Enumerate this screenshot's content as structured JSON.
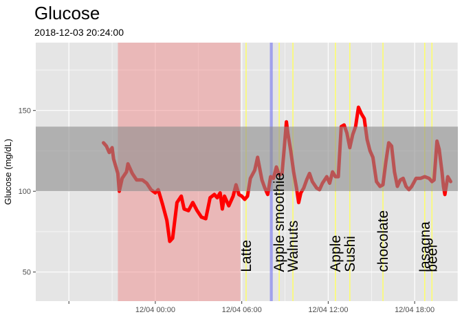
{
  "chart_data": {
    "type": "line",
    "title": "Glucose",
    "subtitle": "2018-12-03 20:24:00",
    "xlabel": "",
    "ylabel": "Glucose (mg/dL)",
    "x_unit": "hours since 2018-12-04 00:00",
    "xlim": [
      -8.3,
      21.0
    ],
    "ylim": [
      32,
      192
    ],
    "x_ticks": [
      {
        "value": -6,
        "label": ""
      },
      {
        "value": 0,
        "label": "12/04 00:00"
      },
      {
        "value": 6,
        "label": "12/04 06:00"
      },
      {
        "value": 12,
        "label": "12/04 12:00"
      },
      {
        "value": 18,
        "label": "12/04 18:00"
      }
    ],
    "y_ticks": [
      {
        "value": 50,
        "label": "50"
      },
      {
        "value": 100,
        "label": "100"
      },
      {
        "value": 150,
        "label": "150"
      }
    ],
    "grid": true,
    "colors": {
      "panel": "#e5e5e5",
      "grid": "#ffffff",
      "line": "#ff0000",
      "target_band": "#8c8c8c",
      "sleep_band": "#f08080",
      "activity_band": "#8888ee",
      "food_line": "#ffff66"
    },
    "target_range": [
      100,
      140
    ],
    "shaded_periods": [
      {
        "name": "sleep",
        "x_start": -2.6,
        "x_end": 5.9
      },
      {
        "name": "activity",
        "x_start": 7.95,
        "x_end": 8.15
      }
    ],
    "food_events": [
      {
        "x": 6.3,
        "label": "Latte"
      },
      {
        "x": 8.6,
        "label": "Apple smoothie"
      },
      {
        "x": 9.55,
        "label": "Walnuts"
      },
      {
        "x": 12.5,
        "label": "Apple"
      },
      {
        "x": 13.5,
        "label": "Sushi"
      },
      {
        "x": 15.8,
        "label": "chocolate"
      },
      {
        "x": 18.7,
        "label": "lasagna"
      },
      {
        "x": 19.2,
        "label": "beer"
      }
    ],
    "series": [
      {
        "points": [
          [
            -3.6,
            130
          ],
          [
            -3.4,
            128
          ],
          [
            -3.2,
            124
          ],
          [
            -3.0,
            127
          ],
          [
            -2.9,
            120
          ],
          [
            -2.6,
            111
          ],
          [
            -2.5,
            100
          ],
          [
            -2.3,
            108
          ],
          [
            -2.0,
            112
          ],
          [
            -1.9,
            117
          ],
          [
            -1.6,
            111
          ],
          [
            -1.3,
            107
          ],
          [
            -0.9,
            107
          ],
          [
            -0.6,
            105
          ],
          [
            -0.3,
            101
          ],
          [
            0.0,
            99
          ],
          [
            0.2,
            101
          ],
          [
            0.5,
            92
          ],
          [
            0.8,
            82
          ],
          [
            1.0,
            69
          ],
          [
            1.2,
            71
          ],
          [
            1.5,
            93
          ],
          [
            1.8,
            97
          ],
          [
            2.0,
            89
          ],
          [
            2.3,
            88
          ],
          [
            2.6,
            93
          ],
          [
            2.9,
            88
          ],
          [
            3.2,
            84
          ],
          [
            3.5,
            83
          ],
          [
            3.8,
            96
          ],
          [
            4.1,
            98
          ],
          [
            4.3,
            96
          ],
          [
            4.5,
            99
          ],
          [
            4.65,
            89
          ],
          [
            4.8,
            97
          ],
          [
            5.1,
            91
          ],
          [
            5.4,
            97
          ],
          [
            5.6,
            104
          ],
          [
            5.8,
            98
          ],
          [
            6.0,
            97
          ],
          [
            6.2,
            95
          ],
          [
            6.4,
            97
          ],
          [
            6.6,
            108
          ],
          [
            6.9,
            113
          ],
          [
            7.1,
            121
          ],
          [
            7.4,
            107
          ],
          [
            7.6,
            102
          ],
          [
            7.8,
            98
          ],
          [
            8.0,
            109
          ],
          [
            8.2,
            108
          ],
          [
            8.4,
            115
          ],
          [
            8.6,
            110
          ],
          [
            8.8,
            111
          ],
          [
            8.95,
            127
          ],
          [
            9.1,
            143
          ],
          [
            9.2,
            136
          ],
          [
            9.4,
            125
          ],
          [
            9.6,
            112
          ],
          [
            9.8,
            102
          ],
          [
            9.95,
            93
          ],
          [
            10.1,
            99
          ],
          [
            10.3,
            102
          ],
          [
            10.5,
            107
          ],
          [
            10.7,
            111
          ],
          [
            10.9,
            106
          ],
          [
            11.2,
            102
          ],
          [
            11.4,
            101
          ],
          [
            11.6,
            105
          ],
          [
            11.9,
            109
          ],
          [
            12.1,
            105
          ],
          [
            12.3,
            112
          ],
          [
            12.5,
            109
          ],
          [
            12.7,
            109
          ],
          [
            12.9,
            140
          ],
          [
            13.1,
            141
          ],
          [
            13.3,
            136
          ],
          [
            13.5,
            127
          ],
          [
            13.7,
            135
          ],
          [
            13.9,
            140
          ],
          [
            14.1,
            152
          ],
          [
            14.3,
            148
          ],
          [
            14.5,
            145
          ],
          [
            14.7,
            132
          ],
          [
            14.9,
            125
          ],
          [
            15.1,
            121
          ],
          [
            15.35,
            106
          ],
          [
            15.6,
            103
          ],
          [
            15.8,
            104
          ],
          [
            16.0,
            118
          ],
          [
            16.2,
            130
          ],
          [
            16.4,
            128
          ],
          [
            16.6,
            112
          ],
          [
            16.8,
            103
          ],
          [
            17.0,
            107
          ],
          [
            17.2,
            108
          ],
          [
            17.4,
            103
          ],
          [
            17.6,
            101
          ],
          [
            17.8,
            103
          ],
          [
            18.1,
            108
          ],
          [
            18.4,
            108
          ],
          [
            18.7,
            109
          ],
          [
            19.0,
            108
          ],
          [
            19.2,
            106
          ],
          [
            19.35,
            107
          ],
          [
            19.55,
            131
          ],
          [
            19.7,
            126
          ],
          [
            19.9,
            112
          ],
          [
            20.0,
            103
          ],
          [
            20.1,
            98
          ],
          [
            20.3,
            109
          ],
          [
            20.5,
            106
          ]
        ]
      }
    ]
  }
}
